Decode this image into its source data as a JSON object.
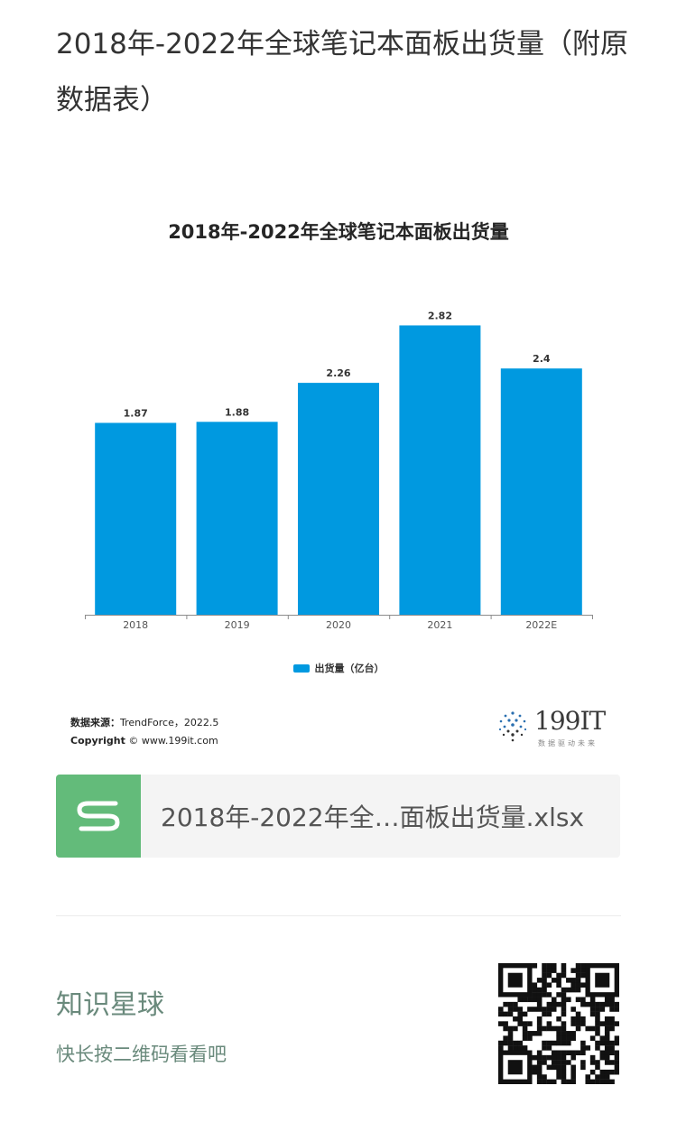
{
  "article": {
    "title": "2018年-2022年全球笔记本面板出货量（附原数据表）"
  },
  "chart_data": {
    "type": "bar",
    "title": "2018年-2022年全球笔记本面板出货量",
    "categories": [
      "2018",
      "2019",
      "2020",
      "2021",
      "2022E"
    ],
    "series": [
      {
        "name": "出货量（亿台）",
        "values": [
          1.87,
          1.88,
          2.26,
          2.82,
          2.4
        ],
        "data_labels": [
          "1.87",
          "1.88",
          "2.26",
          "2.82",
          "2.4"
        ]
      }
    ],
    "ylim": [
      0,
      3.0
    ],
    "grid": false,
    "legend_position": "bottom",
    "bar_color": "#0099e0"
  },
  "figure": {
    "source_label": "数据来源：",
    "source_text": "TrendForce，2022.5",
    "copyright_label": "Copyright",
    "copyright_text": "© www.199it.com",
    "logo_text": "199IT",
    "logo_sub": "数据驱动未来"
  },
  "attachment": {
    "file_name": "2018年-2022年全…面板出货量.xlsx",
    "icon": "spreadsheet-s-icon",
    "icon_color": "#63bb7a"
  },
  "footer": {
    "title": "知识星球",
    "subtitle": "快长按二维码看看吧",
    "text_color": "#6a8a7c",
    "qr_icon": "qr-code-icon"
  }
}
